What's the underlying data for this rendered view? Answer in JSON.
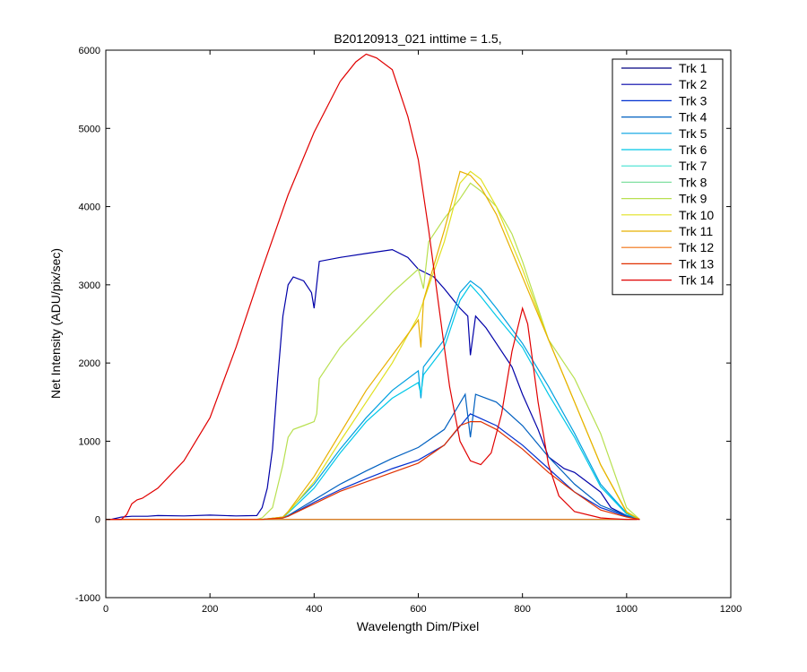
{
  "chart_data": {
    "type": "line",
    "title": "B20120913_021 inttime = 1.5,",
    "xlabel": "Wavelength Dim/Pixel",
    "ylabel": "Net Intensity (ADU/pix/sec)",
    "xlim": [
      0,
      1200
    ],
    "ylim": [
      -1000,
      6000
    ],
    "xticks": [
      0,
      200,
      400,
      600,
      800,
      1000,
      1200
    ],
    "yticks": [
      -1000,
      0,
      1000,
      2000,
      3000,
      4000,
      5000,
      6000
    ],
    "grid": false,
    "legend_position": "top-right",
    "series": [
      {
        "name": "Trk 1",
        "color": "#000080",
        "x": [
          0,
          20,
          40,
          100,
          200,
          300,
          350,
          400,
          500,
          600,
          700,
          800,
          900,
          1000,
          1020
        ],
        "y": [
          0,
          0,
          0,
          0,
          0,
          0,
          0,
          0,
          0,
          0,
          0,
          0,
          0,
          0,
          0
        ]
      },
      {
        "name": "Trk 2",
        "color": "#0000a8",
        "x": [
          0,
          10,
          30,
          50,
          80,
          100,
          150,
          200,
          250,
          290,
          300,
          310,
          320,
          330,
          340,
          350,
          360,
          380,
          395,
          400,
          410,
          450,
          500,
          550,
          580,
          600,
          630,
          650,
          680,
          695,
          700,
          710,
          730,
          750,
          780,
          800,
          830,
          850,
          860,
          880,
          900,
          930,
          950,
          970,
          1000,
          1025
        ],
        "y": [
          0,
          0,
          30,
          40,
          40,
          50,
          45,
          55,
          45,
          50,
          150,
          400,
          900,
          1800,
          2600,
          3000,
          3100,
          3050,
          2900,
          2700,
          3300,
          3350,
          3400,
          3450,
          3350,
          3200,
          3100,
          2950,
          2700,
          2600,
          2100,
          2600,
          2450,
          2250,
          1950,
          1600,
          1150,
          800,
          750,
          650,
          600,
          450,
          350,
          150,
          50,
          0
        ]
      },
      {
        "name": "Trk 3",
        "color": "#0030d0",
        "x": [
          0,
          100,
          200,
          300,
          340,
          350,
          400,
          450,
          500,
          550,
          600,
          650,
          700,
          750,
          800,
          850,
          900,
          950,
          1000,
          1025
        ],
        "y": [
          0,
          0,
          0,
          0,
          20,
          40,
          220,
          380,
          520,
          650,
          760,
          950,
          1350,
          1200,
          950,
          650,
          350,
          150,
          40,
          0
        ]
      },
      {
        "name": "Trk 4",
        "color": "#0060c0",
        "x": [
          0,
          100,
          200,
          300,
          340,
          350,
          400,
          450,
          500,
          550,
          600,
          650,
          690,
          700,
          710,
          750,
          800,
          850,
          900,
          950,
          1000,
          1025
        ],
        "y": [
          0,
          0,
          0,
          0,
          20,
          50,
          250,
          450,
          620,
          780,
          920,
          1150,
          1600,
          1050,
          1600,
          1500,
          1200,
          800,
          450,
          180,
          50,
          0
        ]
      },
      {
        "name": "Trk 5",
        "color": "#00a0e0",
        "x": [
          0,
          100,
          200,
          300,
          340,
          350,
          400,
          450,
          500,
          550,
          600,
          605,
          610,
          650,
          680,
          700,
          720,
          750,
          800,
          850,
          900,
          950,
          1000,
          1025
        ],
        "y": [
          0,
          0,
          0,
          0,
          30,
          100,
          450,
          900,
          1300,
          1650,
          1900,
          1550,
          1950,
          2300,
          2900,
          3050,
          2950,
          2700,
          2250,
          1700,
          1100,
          450,
          80,
          0
        ]
      },
      {
        "name": "Trk 6",
        "color": "#00c8e8",
        "x": [
          0,
          100,
          200,
          300,
          340,
          350,
          400,
          450,
          500,
          550,
          600,
          605,
          610,
          650,
          680,
          700,
          720,
          750,
          800,
          850,
          900,
          950,
          1000,
          1025
        ],
        "y": [
          0,
          0,
          0,
          0,
          20,
          80,
          400,
          850,
          1250,
          1550,
          1750,
          1600,
          1850,
          2200,
          2800,
          3000,
          2850,
          2600,
          2200,
          1600,
          1050,
          420,
          70,
          0
        ]
      },
      {
        "name": "Trk 7",
        "color": "#40e0d0",
        "x": [
          0,
          100,
          200,
          300,
          400,
          500,
          600,
          700,
          800,
          900,
          1000,
          1020
        ],
        "y": [
          0,
          0,
          0,
          0,
          0,
          0,
          0,
          0,
          0,
          0,
          0,
          0
        ]
      },
      {
        "name": "Trk 8",
        "color": "#80e0a0",
        "x": [
          0,
          100,
          200,
          300,
          400,
          500,
          600,
          700,
          800,
          900,
          1000,
          1020
        ],
        "y": [
          0,
          0,
          0,
          0,
          0,
          0,
          0,
          0,
          0,
          0,
          0,
          0
        ]
      },
      {
        "name": "Trk 9",
        "color": "#b8e050",
        "x": [
          0,
          100,
          200,
          290,
          300,
          320,
          340,
          350,
          360,
          380,
          400,
          405,
          410,
          450,
          500,
          550,
          600,
          610,
          620,
          650,
          680,
          700,
          720,
          750,
          780,
          800,
          830,
          850,
          900,
          950,
          1000,
          1025
        ],
        "y": [
          0,
          0,
          0,
          0,
          20,
          150,
          700,
          1050,
          1150,
          1200,
          1250,
          1350,
          1800,
          2200,
          2550,
          2900,
          3200,
          2950,
          3550,
          3850,
          4100,
          4300,
          4200,
          4000,
          3650,
          3300,
          2700,
          2300,
          1800,
          1100,
          150,
          0
        ]
      },
      {
        "name": "Trk 10",
        "color": "#e0e020",
        "x": [
          0,
          100,
          200,
          300,
          340,
          350,
          400,
          450,
          500,
          550,
          600,
          650,
          680,
          700,
          720,
          750,
          800,
          850,
          900,
          950,
          1000,
          1025
        ],
        "y": [
          0,
          0,
          0,
          0,
          30,
          90,
          480,
          1000,
          1500,
          2000,
          2600,
          3550,
          4300,
          4450,
          4350,
          4000,
          3200,
          2300,
          1500,
          700,
          100,
          0
        ]
      },
      {
        "name": "Trk 11",
        "color": "#e8b000",
        "x": [
          0,
          100,
          200,
          300,
          340,
          350,
          400,
          450,
          500,
          550,
          600,
          605,
          610,
          650,
          680,
          700,
          720,
          750,
          800,
          850,
          900,
          950,
          1000,
          1025
        ],
        "y": [
          0,
          0,
          0,
          0,
          30,
          100,
          550,
          1100,
          1650,
          2100,
          2550,
          2200,
          2800,
          3700,
          4450,
          4400,
          4250,
          3900,
          3100,
          2300,
          1500,
          700,
          90,
          0
        ]
      },
      {
        "name": "Trk 12",
        "color": "#f07010",
        "x": [
          0,
          100,
          200,
          300,
          400,
          500,
          600,
          700,
          800,
          900,
          1000,
          1020
        ],
        "y": [
          0,
          0,
          0,
          0,
          0,
          0,
          0,
          0,
          0,
          0,
          0,
          0
        ]
      },
      {
        "name": "Trk 13",
        "color": "#e03000",
        "x": [
          0,
          100,
          200,
          300,
          340,
          350,
          400,
          450,
          500,
          550,
          600,
          650,
          680,
          700,
          720,
          750,
          800,
          850,
          900,
          950,
          1000,
          1025
        ],
        "y": [
          0,
          0,
          0,
          0,
          20,
          40,
          200,
          360,
          480,
          600,
          720,
          950,
          1200,
          1250,
          1250,
          1150,
          900,
          600,
          350,
          120,
          30,
          0
        ]
      },
      {
        "name": "Trk 14",
        "color": "#e00000",
        "x": [
          0,
          30,
          40,
          50,
          60,
          70,
          100,
          150,
          200,
          250,
          300,
          350,
          400,
          450,
          480,
          500,
          520,
          550,
          580,
          600,
          620,
          640,
          660,
          680,
          700,
          720,
          740,
          760,
          780,
          800,
          810,
          830,
          850,
          870,
          900,
          950,
          970,
          1000,
          1025
        ],
        "y": [
          0,
          0,
          60,
          200,
          250,
          270,
          400,
          750,
          1300,
          2200,
          3200,
          4150,
          4950,
          5600,
          5850,
          5950,
          5900,
          5750,
          5150,
          4600,
          3700,
          2700,
          1700,
          1000,
          750,
          700,
          850,
          1350,
          2150,
          2700,
          2500,
          1500,
          700,
          300,
          100,
          20,
          10,
          0,
          0
        ]
      }
    ]
  }
}
